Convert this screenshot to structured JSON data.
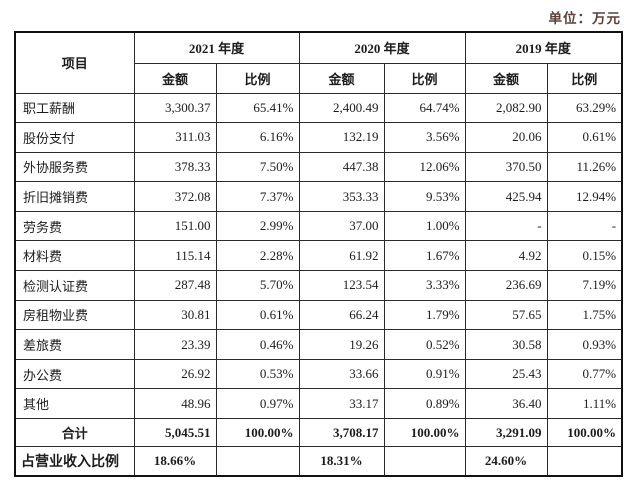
{
  "unit_label": "单位：万元",
  "colors": {
    "text": "#1c1c1c",
    "border": "#2b2b2b",
    "unit_text": "#5d4037",
    "background": "#ffffff"
  },
  "table": {
    "item_header": "项目",
    "year_groups": [
      {
        "label": "2021 年度"
      },
      {
        "label": "2020 年度"
      },
      {
        "label": "2019 年度"
      }
    ],
    "sub_headers": [
      "金额",
      "比例"
    ],
    "rows": [
      {
        "type": "data",
        "item": "职工薪酬",
        "values": [
          "3,300.37",
          "65.41%",
          "2,400.49",
          "64.74%",
          "2,082.90",
          "63.29%"
        ]
      },
      {
        "type": "data",
        "item": "股份支付",
        "values": [
          "311.03",
          "6.16%",
          "132.19",
          "3.56%",
          "20.06",
          "0.61%"
        ]
      },
      {
        "type": "data",
        "item": "外协服务费",
        "values": [
          "378.33",
          "7.50%",
          "447.38",
          "12.06%",
          "370.50",
          "11.26%"
        ]
      },
      {
        "type": "data",
        "item": "折旧摊销费",
        "values": [
          "372.08",
          "7.37%",
          "353.33",
          "9.53%",
          "425.94",
          "12.94%"
        ]
      },
      {
        "type": "data",
        "item": "劳务费",
        "values": [
          "151.00",
          "2.99%",
          "37.00",
          "1.00%",
          "-",
          "-"
        ]
      },
      {
        "type": "data",
        "item": "材料费",
        "values": [
          "115.14",
          "2.28%",
          "61.92",
          "1.67%",
          "4.92",
          "0.15%"
        ]
      },
      {
        "type": "data",
        "item": "检测认证费",
        "values": [
          "287.48",
          "5.70%",
          "123.54",
          "3.33%",
          "236.69",
          "7.19%"
        ]
      },
      {
        "type": "data",
        "item": "房租物业费",
        "values": [
          "30.81",
          "0.61%",
          "66.24",
          "1.79%",
          "57.65",
          "1.75%"
        ]
      },
      {
        "type": "data",
        "item": "差旅费",
        "values": [
          "23.39",
          "0.46%",
          "19.26",
          "0.52%",
          "30.58",
          "0.93%"
        ]
      },
      {
        "type": "data",
        "item": "办公费",
        "values": [
          "26.92",
          "0.53%",
          "33.66",
          "0.91%",
          "25.43",
          "0.77%"
        ]
      },
      {
        "type": "data",
        "item": "其他",
        "values": [
          "48.96",
          "0.97%",
          "33.17",
          "0.89%",
          "36.40",
          "1.11%"
        ]
      },
      {
        "type": "total",
        "item": "合计",
        "values": [
          "5,045.51",
          "100.00%",
          "3,708.17",
          "100.00%",
          "3,291.09",
          "100.00%"
        ]
      },
      {
        "type": "ratio",
        "item": "占营业收入比例",
        "values": [
          "18.66%",
          "",
          "18.31%",
          "",
          "24.60%",
          ""
        ]
      }
    ]
  }
}
